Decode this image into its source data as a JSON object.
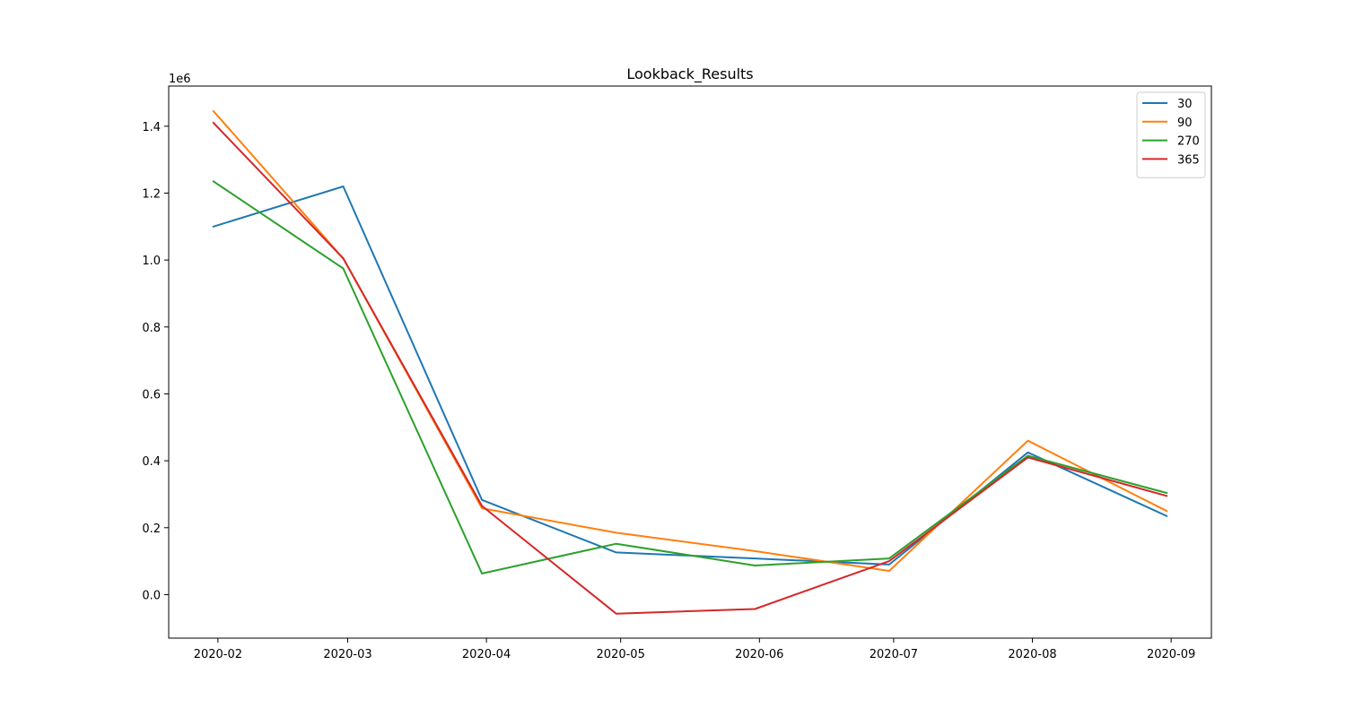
{
  "chart_data": {
    "type": "line",
    "title": "Lookback_Results",
    "xlabel": "",
    "ylabel": "",
    "y_offset_label": "1e6",
    "x_tick_labels": [
      "2020-02",
      "2020-03",
      "2020-04",
      "2020-05",
      "2020-06",
      "2020-07",
      "2020-08",
      "2020-09"
    ],
    "y_tick_values": [
      0.0,
      0.2,
      0.4,
      0.6,
      0.8,
      1.0,
      1.2,
      1.4
    ],
    "y_tick_labels": [
      "0.0",
      "0.2",
      "0.4",
      "0.6",
      "0.8",
      "1.0",
      "1.2",
      "1.4"
    ],
    "x": [
      "2020-01-31",
      "2020-02-29",
      "2020-03-31",
      "2020-04-30",
      "2020-05-31",
      "2020-06-30",
      "2020-07-31",
      "2020-08-31"
    ],
    "xlim": [
      "2020-01-21",
      "2020-09-10"
    ],
    "ylim": [
      -0.13,
      1.52
    ],
    "grid": false,
    "legend_position": "top-right",
    "series": [
      {
        "name": "30",
        "color": "#1f77b4",
        "values": [
          1.1,
          1.22,
          0.283,
          0.126,
          0.108,
          0.09,
          0.425,
          0.235
        ]
      },
      {
        "name": "90",
        "color": "#ff7f0e",
        "values": [
          1.445,
          1.005,
          0.258,
          0.185,
          0.13,
          0.071,
          0.46,
          0.25
        ]
      },
      {
        "name": "270",
        "color": "#2ca02c",
        "values": [
          1.235,
          0.975,
          0.063,
          0.152,
          0.087,
          0.108,
          0.415,
          0.304
        ]
      },
      {
        "name": "365",
        "color": "#d62728",
        "values": [
          1.41,
          1.005,
          0.265,
          -0.057,
          -0.043,
          0.1,
          0.41,
          0.295
        ]
      }
    ]
  }
}
